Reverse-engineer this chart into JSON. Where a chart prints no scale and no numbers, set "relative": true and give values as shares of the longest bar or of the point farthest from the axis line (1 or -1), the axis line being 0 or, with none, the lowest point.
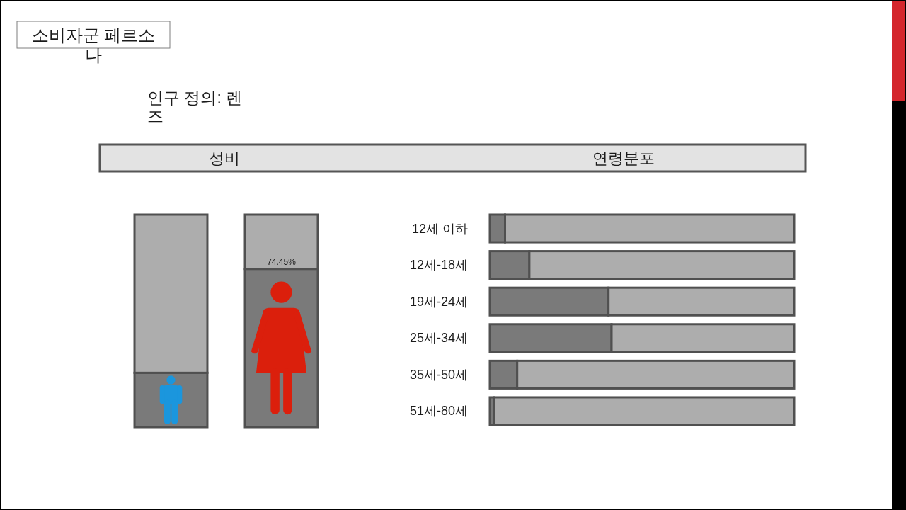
{
  "chart_data": [
    {
      "type": "other",
      "title": "소비자군 페르소나",
      "subtitle": "인구 정의: 렌즈"
    },
    {
      "type": "bar",
      "title": "성비",
      "categories": [
        null,
        null
      ],
      "stacked": true,
      "tick_labels": false,
      "series": [
        {
          "color": "#7a7a7a",
          "values": [
            25.55,
            74.45
          ],
          "value_labels": [
            null,
            "74.45%"
          ]
        },
        {
          "color": "#adadad",
          "values": [
            74.45,
            25.55
          ]
        }
      ]
    },
    {
      "type": "bar",
      "title": "연령분포",
      "orientation": "horizontal",
      "relative": true,
      "stacked": true,
      "categories": [
        "12세 이하",
        "12세-18세",
        "19세-24세",
        "25세-34세",
        "35세-50세",
        "51세-80세"
      ],
      "series": [
        {
          "color": "#7a7a7a",
          "values": [
            0.05,
            0.13,
            0.39,
            0.4,
            0.09,
            0.015
          ]
        },
        {
          "color": "#adadad",
          "values": [
            0.95,
            0.87,
            0.61,
            0.6,
            0.91,
            0.985
          ]
        }
      ]
    }
  ]
}
